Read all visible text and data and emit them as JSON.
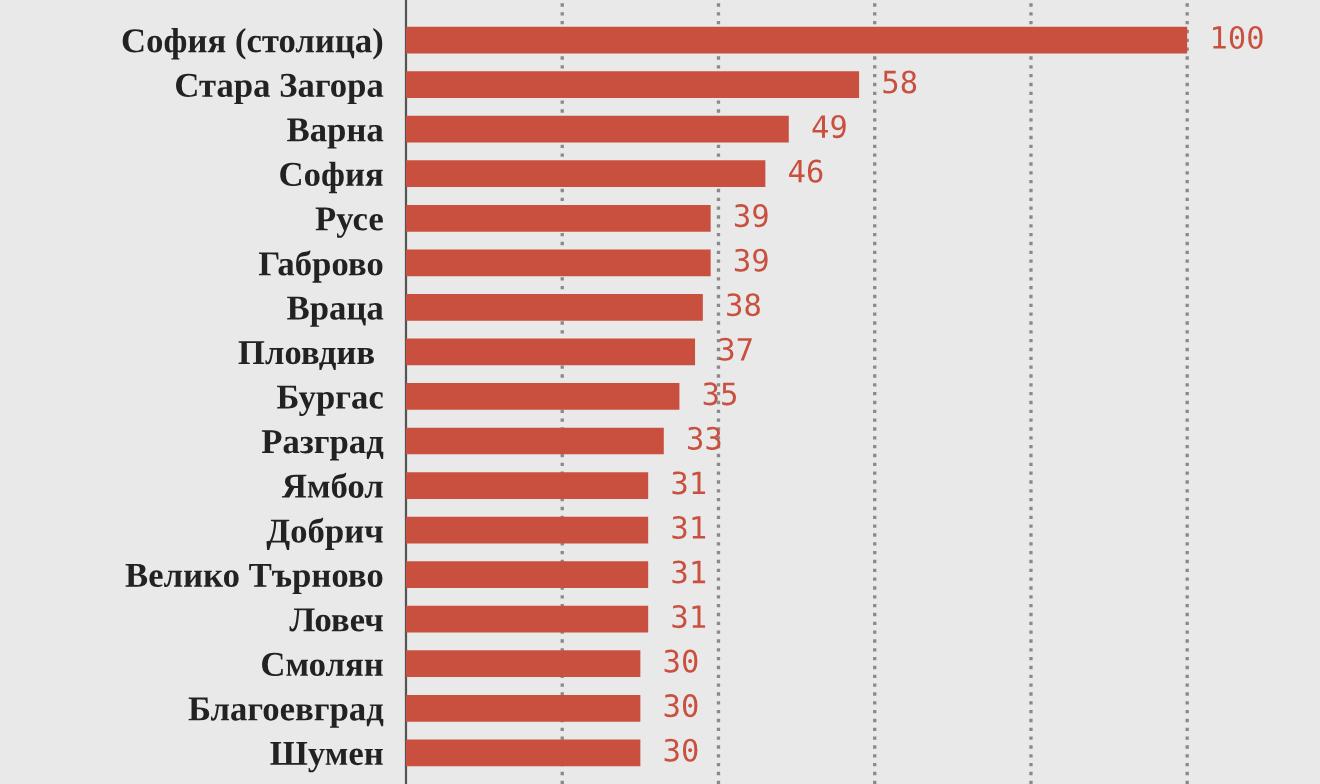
{
  "chart_data": {
    "type": "bar",
    "orientation": "horizontal",
    "categories": [
      "София (столица)",
      "Стара Загора",
      "Варна",
      "София",
      "Русе",
      "Габрово",
      "Враца",
      "Пловдив ",
      "Бургас",
      "Разград",
      "Ямбол",
      "Добрич",
      "Велико Търново",
      "Ловеч",
      "Смолян",
      "Благоевград",
      "Шумен"
    ],
    "values": [
      100,
      58,
      49,
      46,
      39,
      39,
      38,
      37,
      35,
      33,
      31,
      31,
      31,
      31,
      30,
      30,
      30
    ],
    "color": "#c9503f",
    "data_labels": true,
    "xlim": [
      0,
      117
    ],
    "xticks": [
      {
        "value": 20,
        "label": null
      },
      {
        "value": 40,
        "label": null
      },
      {
        "value": 60,
        "label": null
      },
      {
        "value": 80,
        "label": null
      },
      {
        "value": 100,
        "label": null
      }
    ],
    "grid": "x",
    "legend": false
  }
}
